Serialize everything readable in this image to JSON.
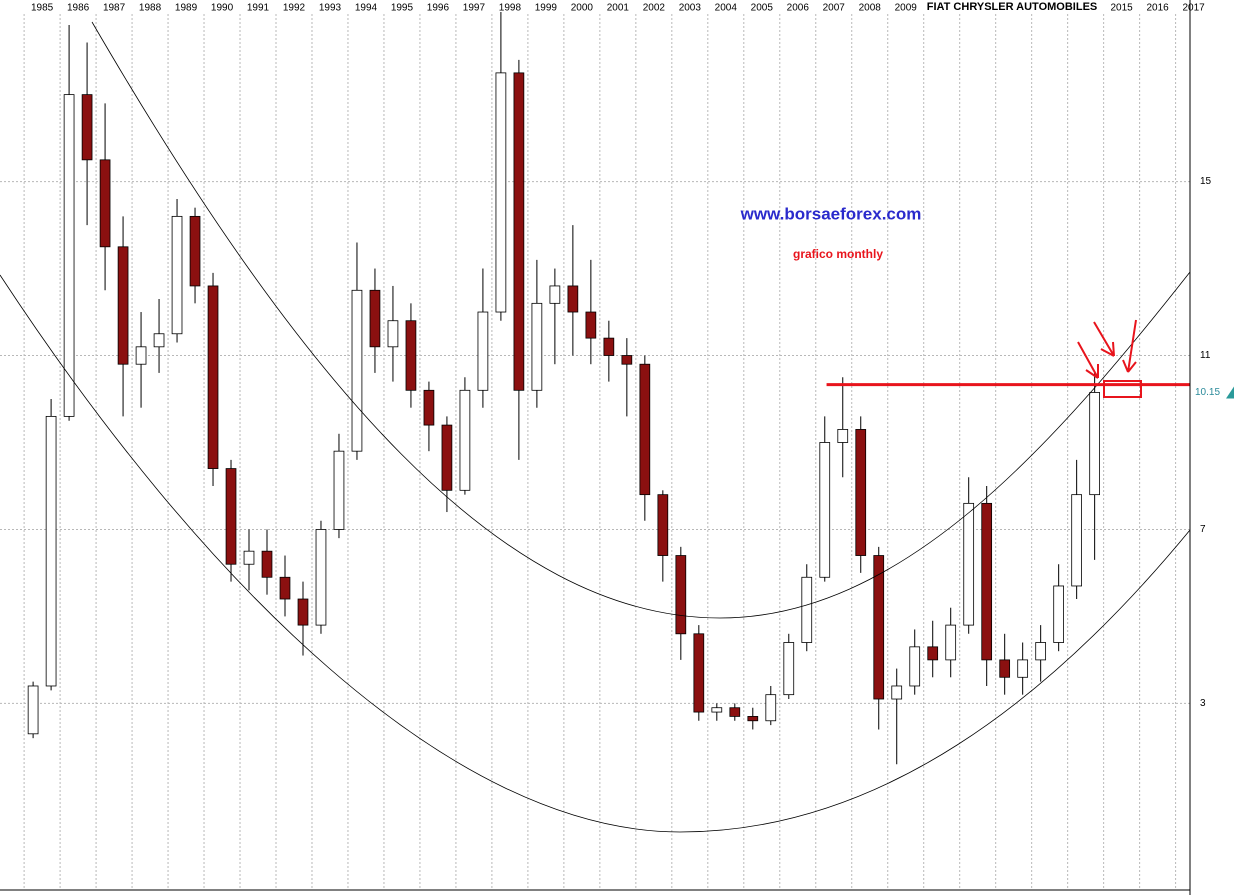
{
  "chart_data": {
    "type": "ohlc",
    "title": "FIAT CHRYSLER AUTOMOBILES",
    "annotations": [
      "www.borsaeforex.com",
      "grafico monthly"
    ],
    "x": [
      1985.25,
      1985.75,
      1986.25,
      1986.75,
      1987.25,
      1987.75,
      1988.25,
      1988.75,
      1989.25,
      1989.75,
      1990.25,
      1990.75,
      1991.25,
      1991.75,
      1992.25,
      1992.75,
      1993.25,
      1993.75,
      1994.25,
      1994.75,
      1995.25,
      1995.75,
      1996.25,
      1996.75,
      1997.25,
      1997.75,
      1998.25,
      1998.75,
      1999.25,
      1999.75,
      2000.25,
      2000.75,
      2001.25,
      2001.75,
      2002.25,
      2002.75,
      2003.25,
      2003.75,
      2004.25,
      2004.75,
      2005.25,
      2005.75,
      2006.25,
      2006.75,
      2007.25,
      2007.75,
      2008.25,
      2008.75,
      2009.25,
      2009.75,
      2010.25,
      2010.75,
      2011.25,
      2011.75,
      2012.25,
      2012.75,
      2013.25,
      2013.75,
      2014.25,
      2014.75
    ],
    "open": [
      2.3,
      3.4,
      9.6,
      17.0,
      15.5,
      13.5,
      10.8,
      11.2,
      11.5,
      14.2,
      12.6,
      8.4,
      6.2,
      6.5,
      5.9,
      5.4,
      4.8,
      7.0,
      8.8,
      12.5,
      11.2,
      11.8,
      10.2,
      9.4,
      7.9,
      10.2,
      12.0,
      17.5,
      10.2,
      12.2,
      12.6,
      12.0,
      11.4,
      11.0,
      10.8,
      7.8,
      6.4,
      4.6,
      2.8,
      2.9,
      2.7,
      2.6,
      3.2,
      4.4,
      5.9,
      9.0,
      9.3,
      6.4,
      3.1,
      3.4,
      4.3,
      4.0,
      4.8,
      7.6,
      4.0,
      3.6,
      4.0,
      4.4,
      5.7,
      7.8
    ],
    "high": [
      3.5,
      10.0,
      18.6,
      18.2,
      16.8,
      14.2,
      12.0,
      12.3,
      14.6,
      14.4,
      12.9,
      8.6,
      7.0,
      7.0,
      6.4,
      5.8,
      7.2,
      9.2,
      13.6,
      13.0,
      12.6,
      12.2,
      10.4,
      9.6,
      10.5,
      13.0,
      18.9,
      17.8,
      13.2,
      13.0,
      14.0,
      13.2,
      11.8,
      11.4,
      11.0,
      7.9,
      6.6,
      4.8,
      3.0,
      3.0,
      2.9,
      3.4,
      4.6,
      6.2,
      9.6,
      10.5,
      9.6,
      6.6,
      3.8,
      4.7,
      4.9,
      5.2,
      8.2,
      8.0,
      4.6,
      4.4,
      4.8,
      6.2,
      8.6,
      10.6
    ],
    "low": [
      2.2,
      3.3,
      9.5,
      14.0,
      12.5,
      9.6,
      9.8,
      10.6,
      11.3,
      12.2,
      8.0,
      5.8,
      5.6,
      5.5,
      5.0,
      4.1,
      4.6,
      6.8,
      8.6,
      10.6,
      10.4,
      9.8,
      8.8,
      7.4,
      7.8,
      9.8,
      11.8,
      8.6,
      9.8,
      10.8,
      11.0,
      10.8,
      10.4,
      9.6,
      7.2,
      5.8,
      4.0,
      2.6,
      2.6,
      2.6,
      2.4,
      2.5,
      3.1,
      4.2,
      5.8,
      8.2,
      6.0,
      2.4,
      1.6,
      3.2,
      3.6,
      3.6,
      4.6,
      3.4,
      3.2,
      3.2,
      3.5,
      4.2,
      5.4,
      6.3
    ],
    "close": [
      3.4,
      9.6,
      17.0,
      15.5,
      13.5,
      10.8,
      11.2,
      11.5,
      14.2,
      12.6,
      8.4,
      6.2,
      6.5,
      5.9,
      5.4,
      4.8,
      7.0,
      8.8,
      12.5,
      11.2,
      11.8,
      10.2,
      9.4,
      7.9,
      10.2,
      12.0,
      17.5,
      10.2,
      12.2,
      12.6,
      12.0,
      11.4,
      11.0,
      10.8,
      7.8,
      6.4,
      4.6,
      2.8,
      2.9,
      2.7,
      2.6,
      3.2,
      4.4,
      5.9,
      9.0,
      9.3,
      6.4,
      3.1,
      3.4,
      4.3,
      4.0,
      4.8,
      7.6,
      4.0,
      3.6,
      4.0,
      4.4,
      5.7,
      7.8,
      10.15
    ],
    "down_color": "#8b1010",
    "wick_color": "#000000",
    "xlim": [
      1984.33,
      2017.4
    ],
    "xticks": [
      1985,
      1986,
      1987,
      1988,
      1989,
      1990,
      1991,
      1992,
      1993,
      1994,
      1995,
      1996,
      1997,
      1998,
      1999,
      2000,
      2001,
      2002,
      2003,
      2004,
      2005,
      2006,
      2007,
      2008,
      2009,
      2010,
      2011,
      2012,
      2013,
      2014,
      2015,
      2016,
      2017
    ],
    "ylim": [
      -1.2,
      18.9
    ],
    "yticks": [
      3,
      7,
      11,
      15
    ],
    "grid": true,
    "reference_line": {
      "value": 10.33,
      "from": 2007.3,
      "to": 2017.4,
      "color": "#e8141c"
    }
  }
}
